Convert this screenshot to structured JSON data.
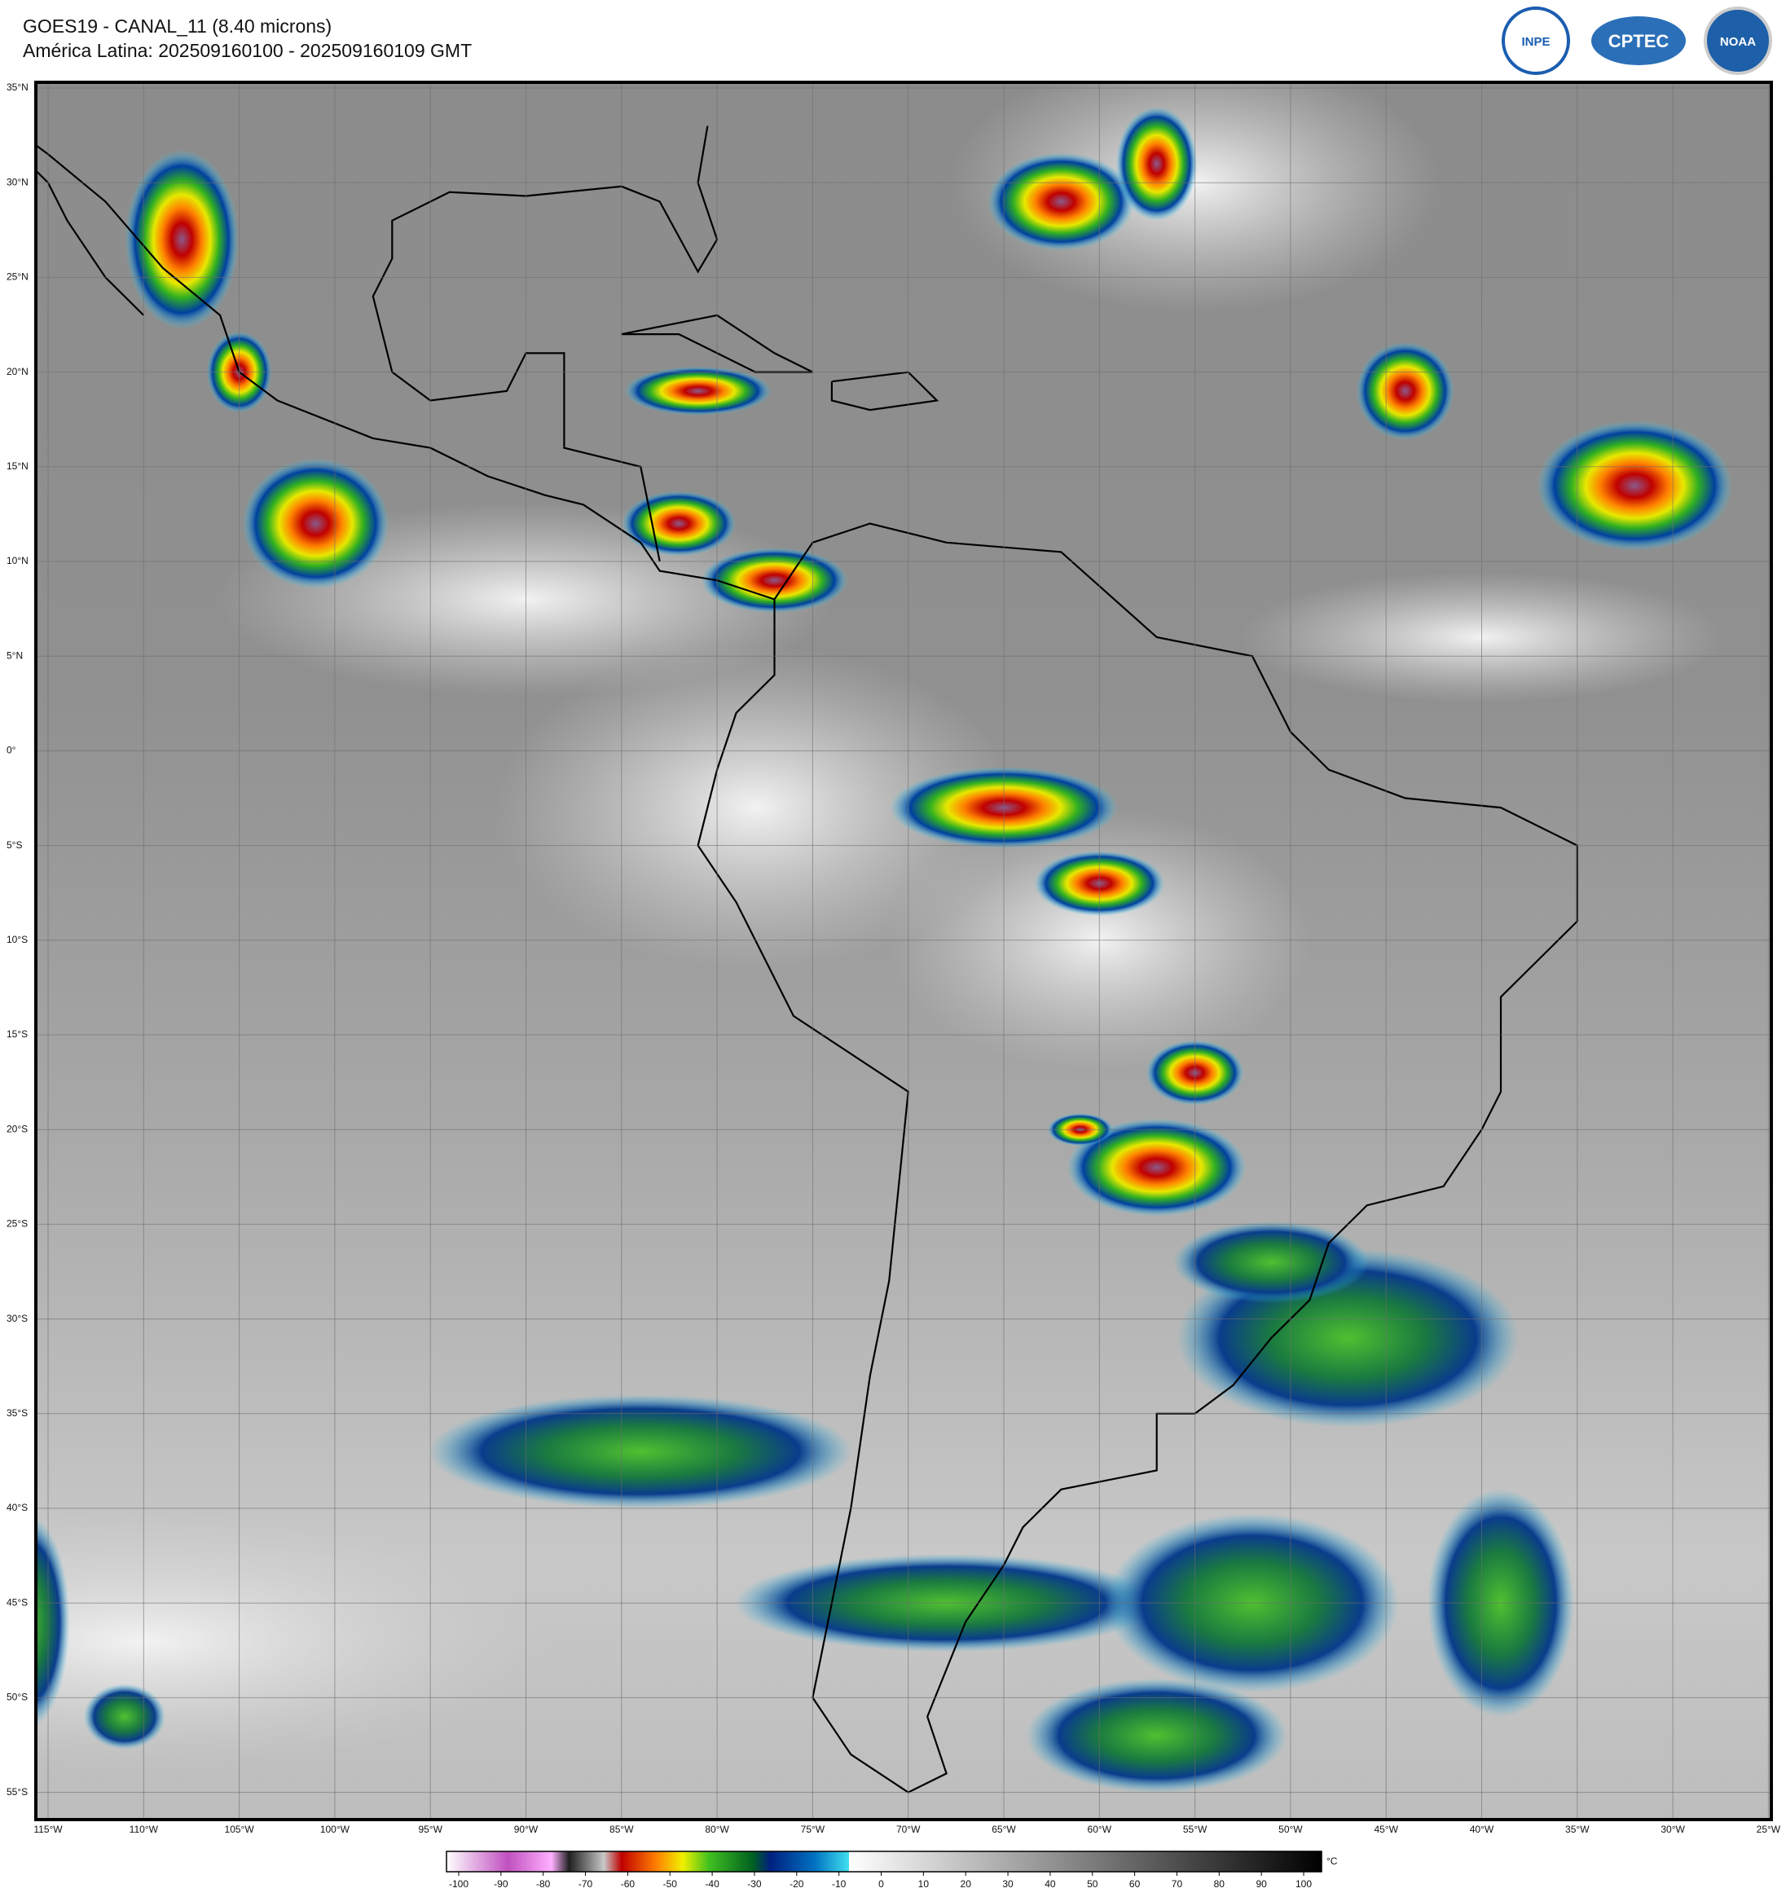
{
  "header": {
    "title": "GOES19 - CANAL_11 (8.40 microns)",
    "subtitle": "América Latina: 202509160100 - 202509160109 GMT"
  },
  "logos": [
    "INPE",
    "CPTEC",
    "NOAA"
  ],
  "map": {
    "lat_labels": [
      "35°N",
      "30°N",
      "25°N",
      "20°N",
      "15°N",
      "10°N",
      "5°N",
      "0°",
      "5°S",
      "10°S",
      "15°S",
      "20°S",
      "25°S",
      "30°S",
      "35°S",
      "40°S",
      "45°S",
      "50°S",
      "55°S"
    ],
    "lon_labels": [
      "115°W",
      "110°W",
      "105°W",
      "100°W",
      "95°W",
      "90°W",
      "85°W",
      "80°W",
      "75°W",
      "70°W",
      "65°W",
      "60°W",
      "55°W",
      "50°W",
      "45°W",
      "40°W",
      "35°W",
      "30°W",
      "25°W"
    ]
  },
  "colorbar": {
    "ticks": [
      -100,
      -90,
      -80,
      -70,
      -60,
      -50,
      -40,
      -30,
      -20,
      -10,
      0,
      10,
      20,
      30,
      40,
      50,
      60,
      70,
      80,
      90,
      100
    ],
    "unit": "°C"
  }
}
